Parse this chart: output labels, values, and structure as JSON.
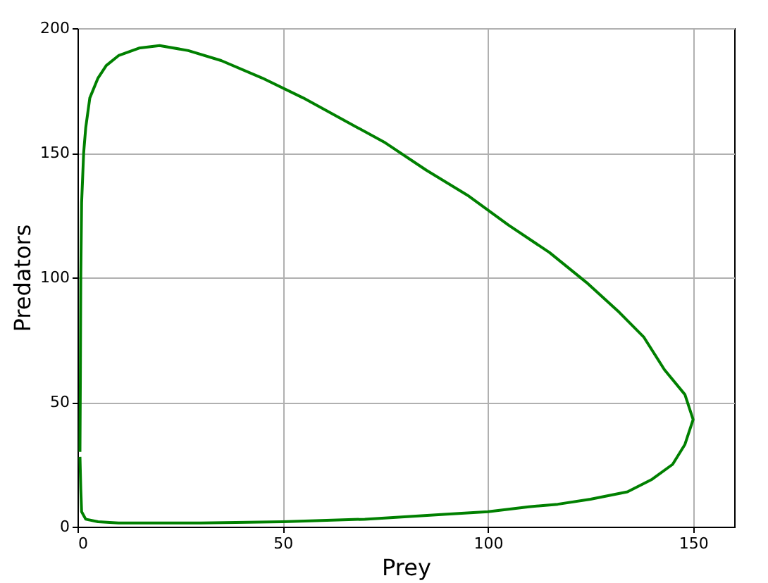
{
  "chart_data": {
    "type": "line",
    "xlabel": "Prey",
    "ylabel": "Predators",
    "xlim": [
      0,
      160
    ],
    "ylim": [
      0,
      200
    ],
    "xticks": [
      0,
      50,
      100,
      150
    ],
    "yticks": [
      0,
      50,
      100,
      150,
      200
    ],
    "grid": true,
    "series": [
      {
        "color": "#008000",
        "x": [
          0.6,
          0.7,
          0.8,
          1,
          1.5,
          2,
          3,
          5,
          7,
          10,
          15,
          20,
          27,
          35,
          45,
          55,
          65,
          75,
          85,
          95,
          105,
          115,
          124,
          132,
          138,
          143,
          148,
          150,
          148,
          145,
          140,
          134,
          125,
          117,
          110,
          100,
          90,
          70,
          50,
          30,
          10,
          5,
          2,
          1,
          0.8,
          0.6
        ],
        "values": [
          30,
          60,
          100,
          130,
          150,
          160,
          172,
          180,
          185,
          189,
          192,
          193,
          191,
          187,
          180,
          172,
          163,
          154,
          143,
          133,
          121,
          110,
          98,
          86,
          76,
          63,
          53,
          43,
          33,
          25,
          19,
          14,
          11,
          9,
          8,
          6,
          5,
          3,
          2,
          1.5,
          1.5,
          2,
          3,
          6,
          15,
          28
        ]
      }
    ]
  }
}
